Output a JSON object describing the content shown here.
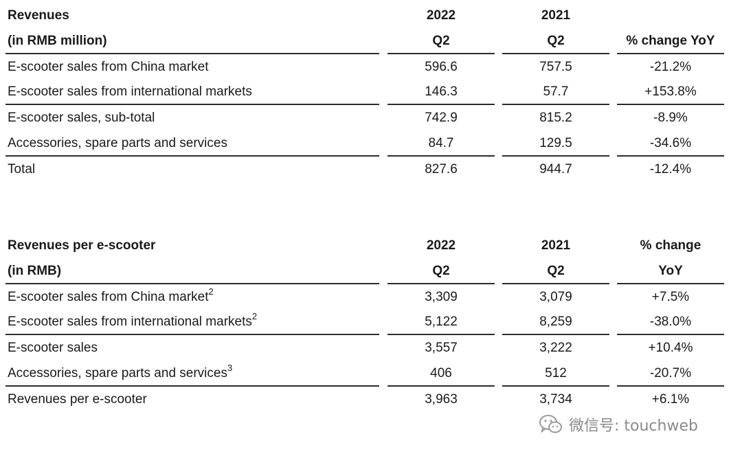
{
  "table1": {
    "header": {
      "row1": [
        "Revenues",
        "2022",
        "2021",
        ""
      ],
      "row2": [
        "(in RMB million)",
        "Q2",
        "Q2",
        "% change YoY"
      ]
    },
    "rows": [
      {
        "label": "E-scooter sales from China market",
        "sup": "",
        "q2_2022": "596.6",
        "q2_2021": "757.5",
        "yoy": "-21.2%"
      },
      {
        "label": "E-scooter sales from international markets",
        "sup": "",
        "q2_2022": "146.3",
        "q2_2021": "57.7",
        "yoy": "+153.8%"
      },
      {
        "label": "E-scooter sales, sub-total",
        "sup": "",
        "q2_2022": "742.9",
        "q2_2021": "815.2",
        "yoy": "-8.9%"
      },
      {
        "label": "Accessories, spare parts and services",
        "sup": "",
        "q2_2022": "84.7",
        "q2_2021": "129.5",
        "yoy": "-34.6%"
      },
      {
        "label": "Total",
        "sup": "",
        "q2_2022": "827.6",
        "q2_2021": "944.7",
        "yoy": "-12.4%"
      }
    ]
  },
  "table2": {
    "header": {
      "row1": [
        "Revenues per e-scooter",
        "2022",
        "2021",
        "% change"
      ],
      "row2": [
        "(in RMB)",
        "Q2",
        "Q2",
        "YoY"
      ]
    },
    "rows": [
      {
        "label": "E-scooter sales from China market",
        "sup": "2",
        "q2_2022": "3,309",
        "q2_2021": "3,079",
        "yoy": "+7.5%"
      },
      {
        "label": "E-scooter sales from international markets",
        "sup": "2",
        "q2_2022": "5,122",
        "q2_2021": "8,259",
        "yoy": "-38.0%"
      },
      {
        "label": "E-scooter sales",
        "sup": "",
        "q2_2022": "3,557",
        "q2_2021": "3,222",
        "yoy": "+10.4%"
      },
      {
        "label": "Accessories, spare parts and services",
        "sup": "3",
        "q2_2022": "406",
        "q2_2021": "512",
        "yoy": "-20.7%"
      },
      {
        "label": "Revenues per e-scooter",
        "sup": "",
        "q2_2022": "3,963",
        "q2_2021": "3,734",
        "yoy": "+6.1%"
      }
    ]
  },
  "watermark": {
    "icon": "wechat-icon",
    "text": "微信号: touchweb"
  }
}
